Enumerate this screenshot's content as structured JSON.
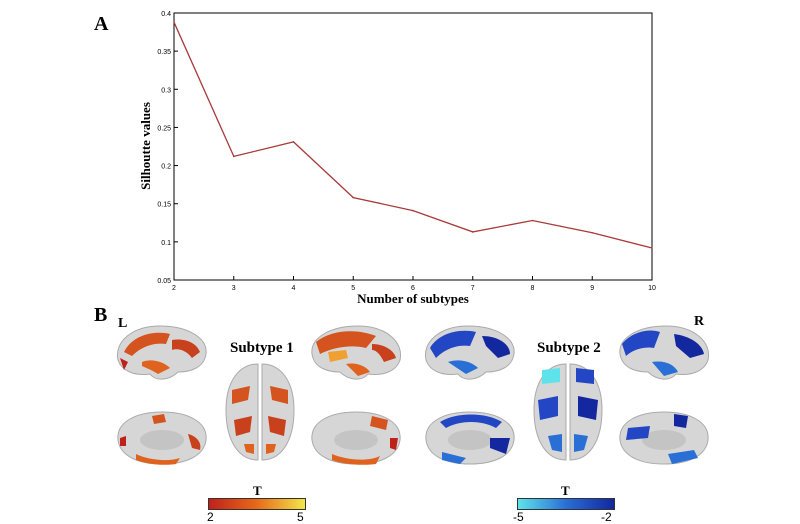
{
  "panels": {
    "a_label": "A",
    "b_label": "B"
  },
  "chart_data": {
    "type": "line",
    "x": [
      2,
      3,
      4,
      5,
      6,
      7,
      8,
      9,
      10
    ],
    "values": [
      0.388,
      0.212,
      0.231,
      0.158,
      0.141,
      0.113,
      0.128,
      0.112,
      0.092
    ],
    "xlabel": "Number of subtypes",
    "ylabel": "Silhoutte values",
    "xlim": [
      2,
      10
    ],
    "ylim": [
      0.05,
      0.4
    ],
    "x_ticks": [
      "2",
      "3",
      "4",
      "5",
      "6",
      "7",
      "8",
      "9",
      "10"
    ],
    "y_ticks": [
      "0.05",
      "0.1",
      "0.15",
      "0.2",
      "0.25",
      "0.3",
      "0.35",
      "0.4"
    ],
    "line_color": "#a83a3a",
    "grid": false
  },
  "brain_panel": {
    "left_label": "L",
    "right_label": "R",
    "subtype1_title": "Subtype 1",
    "subtype2_title": "Subtype 2",
    "subtype1_colormap": {
      "title": "T",
      "min_label": "2",
      "max_label": "5",
      "colors": [
        "#c0201a",
        "#e86a1a",
        "#f2e64a"
      ]
    },
    "subtype2_colormap": {
      "title": "T",
      "min_label": "-5",
      "max_label": "-2",
      "colors": [
        "#5fe3ea",
        "#2a6fd6",
        "#13279e"
      ]
    },
    "colors": {
      "subtype1_fill": "#d4531f",
      "subtype2_fill": "#2246c4",
      "cortex": "#d6d6d6"
    }
  }
}
